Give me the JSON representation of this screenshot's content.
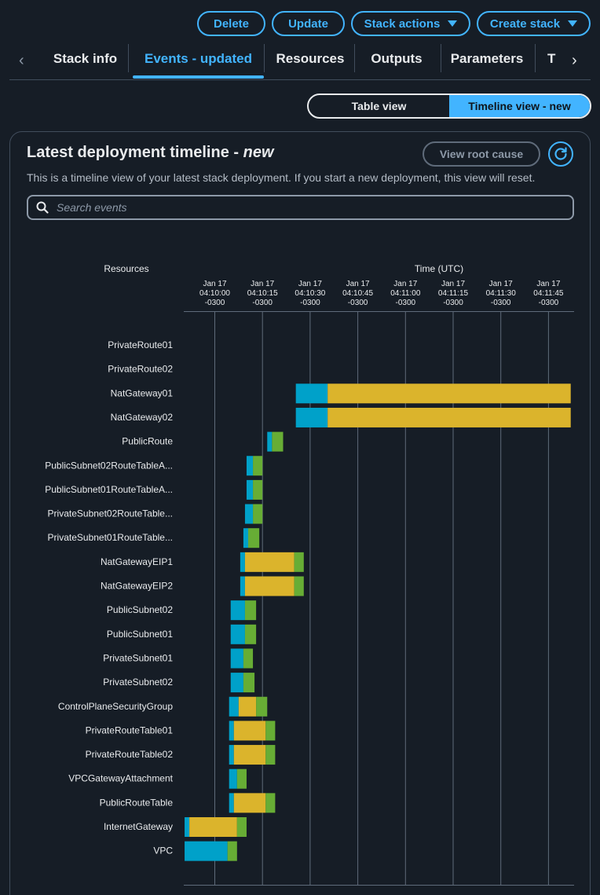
{
  "header_buttons": {
    "delete": "Delete",
    "update": "Update",
    "stack_actions": "Stack actions",
    "create_stack": "Create stack"
  },
  "tabs": [
    {
      "label": "Stack info"
    },
    {
      "label": "Events - updated"
    },
    {
      "label": "Resources"
    },
    {
      "label": "Outputs"
    },
    {
      "label": "Parameters"
    },
    {
      "label": "T"
    }
  ],
  "view_toggle": {
    "table": "Table view",
    "timeline": "Timeline view - new"
  },
  "panel": {
    "title": "Latest deployment timeline - ",
    "title_em": "new",
    "description": "This is a timeline view of your latest stack deployment. If you start a new deployment, this view will reset.",
    "view_root_cause": "View root cause",
    "search_placeholder": "Search events"
  },
  "icons": [
    "chevron-left-icon",
    "chevron-right-icon",
    "caret-down-icon",
    "refresh-icon",
    "search-icon"
  ],
  "colors": {
    "accent": "#42b4ff",
    "in_progress": "#00a1c9",
    "waiting": "#dbb42c",
    "complete": "#67ad35"
  },
  "chart_data": {
    "type": "gantt",
    "resources_label": "Resources",
    "time_label": "Time (UTC)",
    "ticks": [
      {
        "d": "Jan 17",
        "t": "04:10:00",
        "z": "-0300"
      },
      {
        "d": "Jan 17",
        "t": "04:10:15",
        "z": "-0300"
      },
      {
        "d": "Jan 17",
        "t": "04:10:30",
        "z": "-0300"
      },
      {
        "d": "Jan 17",
        "t": "04:10:45",
        "z": "-0300"
      },
      {
        "d": "Jan 17",
        "t": "04:11:00",
        "z": "-0300"
      },
      {
        "d": "Jan 17",
        "t": "04:11:15",
        "z": "-0300"
      },
      {
        "d": "Jan 17",
        "t": "04:11:30",
        "z": "-0300"
      },
      {
        "d": "Jan 17",
        "t": "04:11:45",
        "z": "-0300"
      }
    ],
    "xlim": [
      "04:09:50.5",
      "04:11:52"
    ],
    "rows": [
      {
        "name": "PrivateRoute01",
        "segs": []
      },
      {
        "name": "PrivateRoute02",
        "segs": []
      },
      {
        "name": "NatGateway01",
        "segs": [
          [
            "04:10:25.5",
            "04:10:35.5",
            "in_progress"
          ],
          [
            "04:10:35.5",
            "04:11:52",
            "waiting"
          ]
        ]
      },
      {
        "name": "NatGateway02",
        "segs": [
          [
            "04:10:25.5",
            "04:10:35.5",
            "in_progress"
          ],
          [
            "04:10:35.5",
            "04:11:52",
            "waiting"
          ]
        ]
      },
      {
        "name": "PublicRoute",
        "segs": [
          [
            "04:10:16.5",
            "04:10:18",
            "in_progress"
          ],
          [
            "04:10:18",
            "04:10:21.5",
            "complete"
          ]
        ]
      },
      {
        "name": "PublicSubnet02RouteTableA...",
        "segs": [
          [
            "04:10:10",
            "04:10:12",
            "in_progress"
          ],
          [
            "04:10:12",
            "04:10:15",
            "complete"
          ]
        ]
      },
      {
        "name": "PublicSubnet01RouteTableA...",
        "segs": [
          [
            "04:10:10",
            "04:10:12",
            "in_progress"
          ],
          [
            "04:10:12",
            "04:10:15",
            "complete"
          ]
        ]
      },
      {
        "name": "PrivateSubnet02RouteTable...",
        "segs": [
          [
            "04:10:09.5",
            "04:10:12",
            "in_progress"
          ],
          [
            "04:10:12",
            "04:10:15",
            "complete"
          ]
        ]
      },
      {
        "name": "PrivateSubnet01RouteTable...",
        "segs": [
          [
            "04:10:09",
            "04:10:10.5",
            "in_progress"
          ],
          [
            "04:10:10.5",
            "04:10:14",
            "complete"
          ]
        ]
      },
      {
        "name": "NatGatewayEIP1",
        "segs": [
          [
            "04:10:08",
            "04:10:09.5",
            "in_progress"
          ],
          [
            "04:10:09.5",
            "04:10:25",
            "waiting"
          ],
          [
            "04:10:25",
            "04:10:28",
            "complete"
          ]
        ]
      },
      {
        "name": "NatGatewayEIP2",
        "segs": [
          [
            "04:10:08",
            "04:10:09.5",
            "in_progress"
          ],
          [
            "04:10:09.5",
            "04:10:25",
            "waiting"
          ],
          [
            "04:10:25",
            "04:10:28",
            "complete"
          ]
        ]
      },
      {
        "name": "PublicSubnet02",
        "segs": [
          [
            "04:10:05",
            "04:10:09.5",
            "in_progress"
          ],
          [
            "04:10:09.5",
            "04:10:13",
            "complete"
          ]
        ]
      },
      {
        "name": "PublicSubnet01",
        "segs": [
          [
            "04:10:05",
            "04:10:09.5",
            "in_progress"
          ],
          [
            "04:10:09.5",
            "04:10:13",
            "complete"
          ]
        ]
      },
      {
        "name": "PrivateSubnet01",
        "segs": [
          [
            "04:10:05",
            "04:10:09",
            "in_progress"
          ],
          [
            "04:10:09",
            "04:10:12",
            "complete"
          ]
        ]
      },
      {
        "name": "PrivateSubnet02",
        "segs": [
          [
            "04:10:05",
            "04:10:09",
            "in_progress"
          ],
          [
            "04:10:09",
            "04:10:12.5",
            "complete"
          ]
        ]
      },
      {
        "name": "ControlPlaneSecurityGroup",
        "segs": [
          [
            "04:10:04.5",
            "04:10:07.5",
            "in_progress"
          ],
          [
            "04:10:07.5",
            "04:10:13",
            "waiting"
          ],
          [
            "04:10:13",
            "04:10:16.5",
            "complete"
          ]
        ]
      },
      {
        "name": "PrivateRouteTable01",
        "segs": [
          [
            "04:10:04.5",
            "04:10:06",
            "in_progress"
          ],
          [
            "04:10:06",
            "04:10:16",
            "waiting"
          ],
          [
            "04:10:16",
            "04:10:19",
            "complete"
          ]
        ]
      },
      {
        "name": "PrivateRouteTable02",
        "segs": [
          [
            "04:10:04.5",
            "04:10:06",
            "in_progress"
          ],
          [
            "04:10:06",
            "04:10:16",
            "waiting"
          ],
          [
            "04:10:16",
            "04:10:19",
            "complete"
          ]
        ]
      },
      {
        "name": "VPCGatewayAttachment",
        "segs": [
          [
            "04:10:04.5",
            "04:10:07",
            "in_progress"
          ],
          [
            "04:10:07",
            "04:10:10",
            "complete"
          ]
        ]
      },
      {
        "name": "PublicRouteTable",
        "segs": [
          [
            "04:10:04.5",
            "04:10:06",
            "in_progress"
          ],
          [
            "04:10:06",
            "04:10:16",
            "waiting"
          ],
          [
            "04:10:16",
            "04:10:19",
            "complete"
          ]
        ]
      },
      {
        "name": "InternetGateway",
        "segs": [
          [
            "04:09:50.5",
            "04:09:52",
            "in_progress"
          ],
          [
            "04:09:52",
            "04:10:07",
            "waiting"
          ],
          [
            "04:10:07",
            "04:10:10",
            "complete"
          ]
        ]
      },
      {
        "name": "VPC",
        "segs": [
          [
            "04:09:50.5",
            "04:10:04",
            "in_progress"
          ],
          [
            "04:10:04",
            "04:10:07",
            "complete"
          ]
        ]
      }
    ]
  }
}
